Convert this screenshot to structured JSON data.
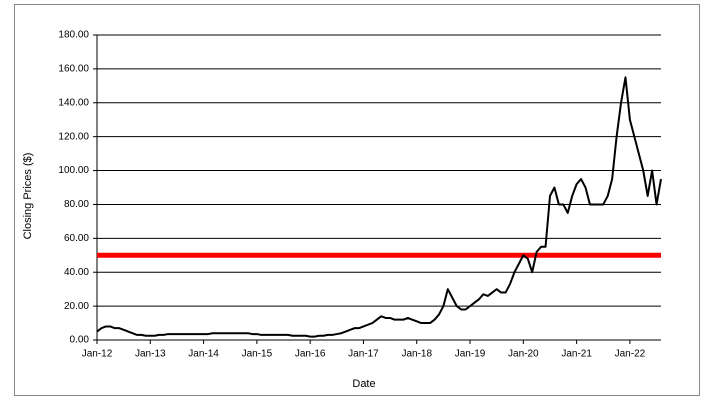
{
  "chart_data": {
    "type": "line",
    "x_label": "Date",
    "y_label": "Closing Prices ($)",
    "x": [
      "Jan-12",
      "Feb-12",
      "Mar-12",
      "Apr-12",
      "May-12",
      "Jun-12",
      "Jul-12",
      "Aug-12",
      "Sep-12",
      "Oct-12",
      "Nov-12",
      "Dec-12",
      "Jan-13",
      "Feb-13",
      "Mar-13",
      "Apr-13",
      "May-13",
      "Jun-13",
      "Jul-13",
      "Aug-13",
      "Sep-13",
      "Oct-13",
      "Nov-13",
      "Dec-13",
      "Jan-14",
      "Feb-14",
      "Mar-14",
      "Apr-14",
      "May-14",
      "Jun-14",
      "Jul-14",
      "Aug-14",
      "Sep-14",
      "Oct-14",
      "Nov-14",
      "Dec-14",
      "Jan-15",
      "Feb-15",
      "Mar-15",
      "Apr-15",
      "May-15",
      "Jun-15",
      "Jul-15",
      "Aug-15",
      "Sep-15",
      "Oct-15",
      "Nov-15",
      "Dec-15",
      "Jan-16",
      "Feb-16",
      "Mar-16",
      "Apr-16",
      "May-16",
      "Jun-16",
      "Jul-16",
      "Aug-16",
      "Sep-16",
      "Oct-16",
      "Nov-16",
      "Dec-16",
      "Jan-17",
      "Feb-17",
      "Mar-17",
      "Apr-17",
      "May-17",
      "Jun-17",
      "Jul-17",
      "Aug-17",
      "Sep-17",
      "Oct-17",
      "Nov-17",
      "Dec-17",
      "Jan-18",
      "Feb-18",
      "Mar-18",
      "Apr-18",
      "May-18",
      "Jun-18",
      "Jul-18",
      "Aug-18",
      "Sep-18",
      "Oct-18",
      "Nov-18",
      "Dec-18",
      "Jan-19",
      "Feb-19",
      "Mar-19",
      "Apr-19",
      "May-19",
      "Jun-19",
      "Jul-19",
      "Aug-19",
      "Sep-19",
      "Oct-19",
      "Nov-19",
      "Dec-19",
      "Jan-20",
      "Feb-20",
      "Mar-20",
      "Apr-20",
      "May-20",
      "Jun-20",
      "Jul-20",
      "Aug-20",
      "Sep-20",
      "Oct-20",
      "Nov-20",
      "Dec-20",
      "Jan-21",
      "Feb-21",
      "Mar-21",
      "Apr-21",
      "May-21",
      "Jun-21",
      "Jul-21",
      "Aug-21",
      "Sep-21",
      "Oct-21",
      "Nov-21",
      "Dec-21",
      "Jan-22",
      "Feb-22",
      "Mar-22",
      "Apr-22",
      "May-22",
      "Jun-22",
      "Jul-22",
      "Aug-22"
    ],
    "series": [
      {
        "color": "#000000",
        "values": [
          5,
          7,
          8,
          8,
          7,
          7,
          6,
          5,
          4,
          3,
          3,
          2.5,
          2.5,
          2.5,
          3,
          3,
          3.5,
          3.5,
          3.5,
          3.5,
          3.5,
          3.5,
          3.5,
          3.5,
          3.5,
          3.5,
          4,
          4,
          4,
          4,
          4,
          4,
          4,
          4,
          4,
          3.5,
          3.5,
          3,
          3,
          3,
          3,
          3,
          3,
          3,
          2.5,
          2.5,
          2.5,
          2.5,
          2,
          2,
          2.5,
          2.5,
          3,
          3,
          3.5,
          4,
          5,
          6,
          7,
          7,
          8,
          9,
          10,
          12,
          14,
          13,
          13,
          12,
          12,
          12,
          13,
          12,
          11,
          10,
          10,
          10,
          12,
          15,
          20,
          30,
          25,
          20,
          18,
          18,
          20,
          22,
          24,
          27,
          26,
          28,
          30,
          28,
          28,
          33,
          40,
          45,
          50,
          48,
          40,
          52,
          55,
          55,
          85,
          90,
          80,
          80,
          75,
          85,
          92,
          95,
          90,
          80,
          80,
          80,
          80,
          85,
          95,
          120,
          140,
          155,
          130,
          120,
          110,
          100,
          85,
          100,
          80,
          95
        ]
      }
    ],
    "xticks": [
      "Jan-12",
      "Jan-13",
      "Jan-14",
      "Jan-15",
      "Jan-16",
      "Jan-17",
      "Jan-18",
      "Jan-19",
      "Jan-20",
      "Jan-21",
      "Jan-22"
    ],
    "ylim": [
      0,
      180
    ],
    "yticks": [
      {
        "value": 0,
        "label": "0.00"
      },
      {
        "value": 20,
        "label": "20.00"
      },
      {
        "value": 40,
        "label": "40.00"
      },
      {
        "value": 60,
        "label": "60.00"
      },
      {
        "value": 80,
        "label": "80.00"
      },
      {
        "value": 100,
        "label": "100.00"
      },
      {
        "value": 120,
        "label": "120.00"
      },
      {
        "value": 140,
        "label": "140.00"
      },
      {
        "value": 160,
        "label": "160.00"
      },
      {
        "value": 180,
        "label": "180.00"
      }
    ],
    "grid": true,
    "reference_line": {
      "value": 50,
      "color": "#ff0000"
    }
  }
}
